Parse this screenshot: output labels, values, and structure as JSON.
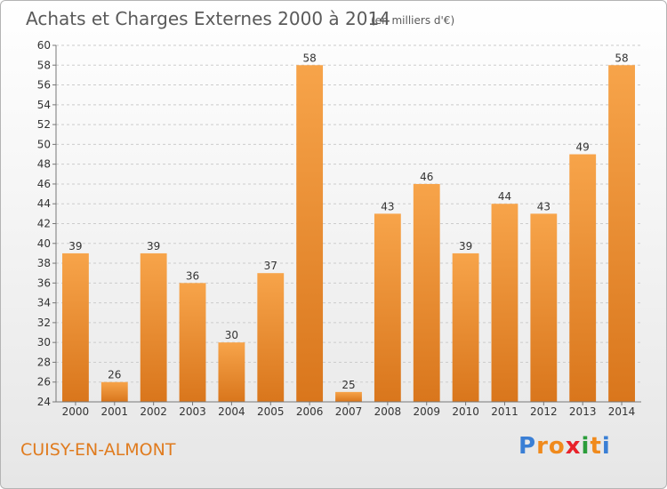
{
  "title": "Achats et Charges Externes 2000 à 2014",
  "unit_note": "(en milliers d'€)",
  "place_name": "CUISY-EN-ALMONT",
  "brand": {
    "letters": [
      "P",
      "r",
      "o",
      "x",
      "i",
      "t",
      "i"
    ],
    "colors": [
      "#3a7fd5",
      "#f08a1c",
      "#f08a1c",
      "#e8222a",
      "#2a9d3a",
      "#f08a1c",
      "#3a7fd5"
    ]
  },
  "colors": {
    "bar_light": "#f7a44a",
    "bar_dark": "#d9761c",
    "grid": "#cccccc",
    "axis": "#777777"
  },
  "chart_data": {
    "type": "bar",
    "categories": [
      "2000",
      "2001",
      "2002",
      "2003",
      "2004",
      "2005",
      "2006",
      "2007",
      "2008",
      "2009",
      "2010",
      "2011",
      "2012",
      "2013",
      "2014"
    ],
    "values": [
      39,
      26,
      39,
      36,
      30,
      37,
      58,
      25,
      43,
      46,
      39,
      44,
      43,
      49,
      58
    ],
    "ylim": [
      24,
      60
    ],
    "yticks": [
      24,
      26,
      28,
      30,
      32,
      34,
      36,
      38,
      40,
      42,
      44,
      46,
      48,
      50,
      52,
      54,
      56,
      58,
      60
    ],
    "grid": true,
    "data_labels": true
  }
}
